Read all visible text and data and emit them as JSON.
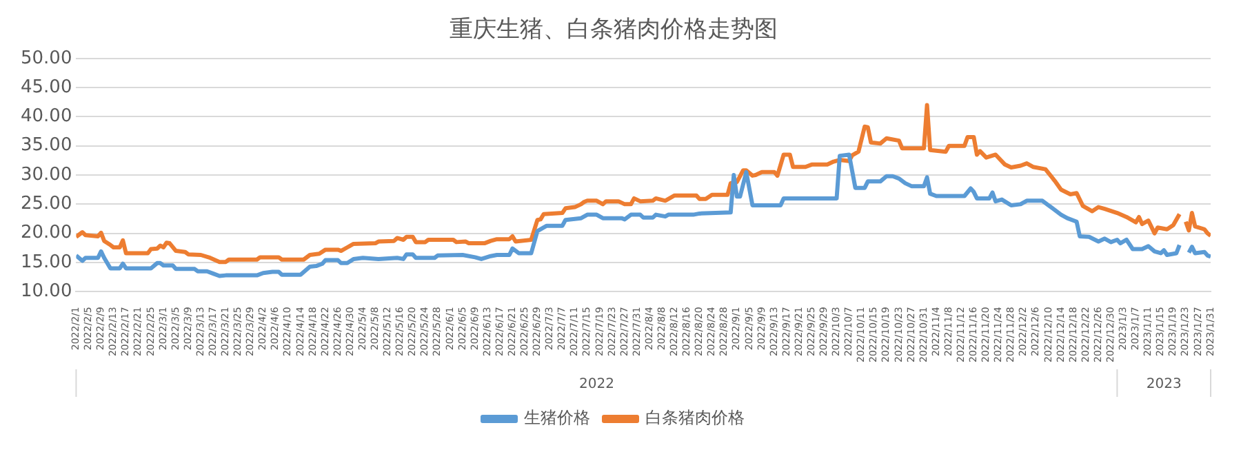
{
  "chart_data": {
    "type": "line",
    "title": "重庆生猪、白条猪肉价格走势图",
    "xlim": [
      "2022-02-01",
      "2023-01-31"
    ],
    "xticks": [
      {
        "value": "2022-02-01",
        "label": "2022/2/1"
      },
      {
        "value": "2022-02-05",
        "label": "2022/2/5"
      },
      {
        "value": "2022-02-09",
        "label": "2022/2/9"
      },
      {
        "value": "2022-02-13",
        "label": "2022/2/13"
      },
      {
        "value": "2022-02-17",
        "label": "2022/2/17"
      },
      {
        "value": "2022-02-21",
        "label": "2022/2/21"
      },
      {
        "value": "2022-02-25",
        "label": "2022/2/25"
      },
      {
        "value": "2022-03-01",
        "label": "2022/3/1"
      },
      {
        "value": "2022-03-05",
        "label": "2022/3/5"
      },
      {
        "value": "2022-03-09",
        "label": "2022/3/9"
      },
      {
        "value": "2022-03-13",
        "label": "2022/3/13"
      },
      {
        "value": "2022-03-17",
        "label": "2022/3/17"
      },
      {
        "value": "2022-03-21",
        "label": "2022/3/21"
      },
      {
        "value": "2022-03-25",
        "label": "2022/3/25"
      },
      {
        "value": "2022-03-29",
        "label": "2022/3/29"
      },
      {
        "value": "2022-04-02",
        "label": "2022/4/2"
      },
      {
        "value": "2022-04-06",
        "label": "2022/4/6"
      },
      {
        "value": "2022-04-10",
        "label": "2022/4/10"
      },
      {
        "value": "2022-04-14",
        "label": "2022/4/14"
      },
      {
        "value": "2022-04-18",
        "label": "2022/4/18"
      },
      {
        "value": "2022-04-22",
        "label": "2022/4/22"
      },
      {
        "value": "2022-04-26",
        "label": "2022/4/26"
      },
      {
        "value": "2022-04-30",
        "label": "2022/4/30"
      },
      {
        "value": "2022-05-04",
        "label": "2022/5/4"
      },
      {
        "value": "2022-05-08",
        "label": "2022/5/8"
      },
      {
        "value": "2022-05-12",
        "label": "2022/5/12"
      },
      {
        "value": "2022-05-16",
        "label": "2022/5/16"
      },
      {
        "value": "2022-05-20",
        "label": "2022/5/20"
      },
      {
        "value": "2022-05-24",
        "label": "2022/5/24"
      },
      {
        "value": "2022-05-28",
        "label": "2022/5/28"
      },
      {
        "value": "2022-06-01",
        "label": "2022/6/1"
      },
      {
        "value": "2022-06-05",
        "label": "2022/6/5"
      },
      {
        "value": "2022-06-09",
        "label": "2022/6/9"
      },
      {
        "value": "2022-06-13",
        "label": "2022/6/13"
      },
      {
        "value": "2022-06-17",
        "label": "2022/6/17"
      },
      {
        "value": "2022-06-21",
        "label": "2022/6/21"
      },
      {
        "value": "2022-06-25",
        "label": "2022/6/25"
      },
      {
        "value": "2022-06-29",
        "label": "2022/6/29"
      },
      {
        "value": "2022-07-03",
        "label": "2022/7/3"
      },
      {
        "value": "2022-07-07",
        "label": "2022/7/7"
      },
      {
        "value": "2022-07-11",
        "label": "2022/7/11"
      },
      {
        "value": "2022-07-15",
        "label": "2022/7/15"
      },
      {
        "value": "2022-07-19",
        "label": "2022/7/19"
      },
      {
        "value": "2022-07-23",
        "label": "2022/7/23"
      },
      {
        "value": "2022-07-27",
        "label": "2022/7/27"
      },
      {
        "value": "2022-07-31",
        "label": "2022/7/31"
      },
      {
        "value": "2022-08-04",
        "label": "2022/8/4"
      },
      {
        "value": "2022-08-08",
        "label": "2022/8/8"
      },
      {
        "value": "2022-08-12",
        "label": "2022/8/12"
      },
      {
        "value": "2022-08-16",
        "label": "2022/8/16"
      },
      {
        "value": "2022-08-20",
        "label": "2022/8/20"
      },
      {
        "value": "2022-08-24",
        "label": "2022/8/24"
      },
      {
        "value": "2022-08-28",
        "label": "2022/8/28"
      },
      {
        "value": "2022-09-01",
        "label": "2022/9/1"
      },
      {
        "value": "2022-09-05",
        "label": "2022/9/5"
      },
      {
        "value": "2022-09-09",
        "label": "2022/9/9"
      },
      {
        "value": "2022-09-13",
        "label": "2022/9/13"
      },
      {
        "value": "2022-09-17",
        "label": "2022/9/17"
      },
      {
        "value": "2022-09-21",
        "label": "2022/9/21"
      },
      {
        "value": "2022-09-25",
        "label": "2022/9/25"
      },
      {
        "value": "2022-09-29",
        "label": "2022/9/29"
      },
      {
        "value": "2022-10-03",
        "label": "2022/10/3"
      },
      {
        "value": "2022-10-07",
        "label": "2022/10/7"
      },
      {
        "value": "2022-10-11",
        "label": "2022/10/11"
      },
      {
        "value": "2022-10-15",
        "label": "2022/10/15"
      },
      {
        "value": "2022-10-19",
        "label": "2022/10/19"
      },
      {
        "value": "2022-10-23",
        "label": "2022/10/23"
      },
      {
        "value": "2022-10-27",
        "label": "2022/10/27"
      },
      {
        "value": "2022-10-31",
        "label": "2022/10/31"
      },
      {
        "value": "2022-11-04",
        "label": "2022/11/4"
      },
      {
        "value": "2022-11-08",
        "label": "2022/11/8"
      },
      {
        "value": "2022-11-12",
        "label": "2022/11/12"
      },
      {
        "value": "2022-11-16",
        "label": "2022/11/16"
      },
      {
        "value": "2022-11-20",
        "label": "2022/11/20"
      },
      {
        "value": "2022-11-24",
        "label": "2022/11/24"
      },
      {
        "value": "2022-11-28",
        "label": "2022/11/28"
      },
      {
        "value": "2022-12-02",
        "label": "2022/12/2"
      },
      {
        "value": "2022-12-06",
        "label": "2022/12/6"
      },
      {
        "value": "2022-12-10",
        "label": "2022/12/10"
      },
      {
        "value": "2022-12-14",
        "label": "2022/12/14"
      },
      {
        "value": "2022-12-18",
        "label": "2022/12/18"
      },
      {
        "value": "2022-12-22",
        "label": "2022/12/22"
      },
      {
        "value": "2022-12-26",
        "label": "2022/12/26"
      },
      {
        "value": "2022-12-30",
        "label": "2022/12/30"
      },
      {
        "value": "2023-01-03",
        "label": "2023/1/3"
      },
      {
        "value": "2023-01-07",
        "label": "2023/1/7"
      },
      {
        "value": "2023-01-11",
        "label": "2023/1/11"
      },
      {
        "value": "2023-01-15",
        "label": "2023/1/15"
      },
      {
        "value": "2023-01-19",
        "label": "2023/1/19"
      },
      {
        "value": "2023-01-23",
        "label": "2023/1/23"
      },
      {
        "value": "2023-01-27",
        "label": "2023/1/27"
      },
      {
        "value": "2023-01-31",
        "label": "2023/1/31"
      }
    ],
    "ylim": [
      10,
      50
    ],
    "yticks": [
      {
        "value": 10,
        "label": "10.00"
      },
      {
        "value": 15,
        "label": "15.00"
      },
      {
        "value": 20,
        "label": "20.00"
      },
      {
        "value": 25,
        "label": "25.00"
      },
      {
        "value": 30,
        "label": "30.00"
      },
      {
        "value": 35,
        "label": "35.00"
      },
      {
        "value": 40,
        "label": "40.00"
      },
      {
        "value": 45,
        "label": "45.00"
      },
      {
        "value": 50,
        "label": "50.00"
      }
    ],
    "grid": "y",
    "legend": "bottom",
    "marker": "none",
    "line_style": "solid",
    "annotations": [
      "2022",
      "2023"
    ],
    "series": [
      {
        "name": "生猪价格",
        "color": "#5b9bd5",
        "x": [
          "2022-02-01",
          "2022-02-03",
          "2022-02-04",
          "2022-02-08",
          "2022-02-09",
          "2022-02-10",
          "2022-02-12",
          "2022-02-15",
          "2022-02-16",
          "2022-02-17",
          "2022-02-25",
          "2022-02-27",
          "2022-02-28",
          "2022-03-01",
          "2022-03-04",
          "2022-03-05",
          "2022-03-11",
          "2022-03-12",
          "2022-03-15",
          "2022-03-17",
          "2022-03-19",
          "2022-03-21",
          "2022-03-31",
          "2022-04-02",
          "2022-04-05",
          "2022-04-07",
          "2022-04-08",
          "2022-04-14",
          "2022-04-17",
          "2022-04-19",
          "2022-04-21",
          "2022-04-22",
          "2022-04-26",
          "2022-04-27",
          "2022-04-29",
          "2022-05-01",
          "2022-05-04",
          "2022-05-09",
          "2022-05-15",
          "2022-05-17",
          "2022-05-18",
          "2022-05-20",
          "2022-05-21",
          "2022-05-27",
          "2022-05-28",
          "2022-06-05",
          "2022-06-09",
          "2022-06-11",
          "2022-06-14",
          "2022-06-16",
          "2022-06-20",
          "2022-06-21",
          "2022-06-23",
          "2022-06-27",
          "2022-06-29",
          "2022-07-01",
          "2022-07-02",
          "2022-07-07",
          "2022-07-08",
          "2022-07-13",
          "2022-07-15",
          "2022-07-18",
          "2022-07-20",
          "2022-07-26",
          "2022-07-27",
          "2022-07-29",
          "2022-08-01",
          "2022-08-02",
          "2022-08-05",
          "2022-08-06",
          "2022-08-09",
          "2022-08-10",
          "2022-08-18",
          "2022-08-20",
          "2022-08-30",
          "2022-08-31",
          "2022-09-01",
          "2022-09-02",
          "2022-09-04",
          "2022-09-06",
          "2022-09-15",
          "2022-09-16",
          "2022-10-03",
          "2022-10-04",
          "2022-10-07",
          "2022-10-09",
          "2022-10-12",
          "2022-10-13",
          "2022-10-17",
          "2022-10-19",
          "2022-10-21",
          "2022-10-23",
          "2022-10-25",
          "2022-10-27",
          "2022-10-31",
          "2022-11-01",
          "2022-11-02",
          "2022-11-04",
          "2022-11-13",
          "2022-11-15",
          "2022-11-16",
          "2022-11-17",
          "2022-11-21",
          "2022-11-22",
          "2022-11-23",
          "2022-11-25",
          "2022-11-28",
          "2022-12-01",
          "2022-12-03",
          "2022-12-08",
          "2022-12-10",
          "2022-12-14",
          "2022-12-16",
          "2022-12-19",
          "2022-12-20",
          "2022-12-23",
          "2022-12-26",
          "2022-12-28",
          "2022-12-30",
          "2023-01-01",
          "2023-01-02",
          "2023-01-04",
          "2023-01-06",
          "2023-01-09",
          "2023-01-11",
          "2023-01-13",
          "2023-01-15",
          "2023-01-16",
          "2023-01-17",
          "2023-01-20",
          "2023-01-21",
          "2023-01-22",
          "2023-01-24",
          "2023-01-25",
          "2023-01-26",
          "2023-01-29",
          "2023-01-30",
          "2023-01-31"
        ],
        "values": [
          16.2,
          15.3,
          15.8,
          15.8,
          16.9,
          15.8,
          14.0,
          14.0,
          14.8,
          14.0,
          14.0,
          14.9,
          14.9,
          14.5,
          14.5,
          13.9,
          13.9,
          13.5,
          13.5,
          13.1,
          12.7,
          12.8,
          12.8,
          13.2,
          13.4,
          13.4,
          12.9,
          12.9,
          14.3,
          14.4,
          14.8,
          15.4,
          15.4,
          14.9,
          14.9,
          15.6,
          15.8,
          15.6,
          15.8,
          15.6,
          16.4,
          16.4,
          15.8,
          15.8,
          16.2,
          16.3,
          15.9,
          15.6,
          16.1,
          16.3,
          16.3,
          17.4,
          16.6,
          16.6,
          20.4,
          21.0,
          21.3,
          21.3,
          22.3,
          22.6,
          23.2,
          23.2,
          22.6,
          22.6,
          22.4,
          23.2,
          23.2,
          22.7,
          22.7,
          23.2,
          22.9,
          23.2,
          23.2,
          23.4,
          23.6,
          30.0,
          26.3,
          26.3,
          30.5,
          24.8,
          24.8,
          26.0,
          26.0,
          33.3,
          33.5,
          27.8,
          27.8,
          28.9,
          28.9,
          29.8,
          29.8,
          29.4,
          28.6,
          28.1,
          28.1,
          29.6,
          26.8,
          26.4,
          26.4,
          27.7,
          27.1,
          26.0,
          26.0,
          27.0,
          25.5,
          25.8,
          24.8,
          25.0,
          25.6,
          25.6,
          24.8,
          23.2,
          22.6,
          22.0,
          19.5,
          19.4,
          18.6,
          19.1,
          18.5,
          18.9,
          18.3,
          18.9,
          17.3,
          17.3,
          17.8,
          16.9,
          16.6,
          17.1,
          16.3,
          16.6,
          18.0,
          null,
          16.7,
          17.7,
          16.6,
          16.8,
          16.2,
          16.0
        ]
      },
      {
        "name": "白条猪肉价格",
        "color": "#ed7d31",
        "x": [
          "2022-02-01",
          "2022-02-03",
          "2022-02-04",
          "2022-02-08",
          "2022-02-09",
          "2022-02-10",
          "2022-02-12",
          "2022-02-13",
          "2022-02-15",
          "2022-02-16",
          "2022-02-17",
          "2022-02-24",
          "2022-02-25",
          "2022-02-27",
          "2022-02-28",
          "2022-03-01",
          "2022-03-02",
          "2022-03-03",
          "2022-03-05",
          "2022-03-08",
          "2022-03-09",
          "2022-03-13",
          "2022-03-16",
          "2022-03-19",
          "2022-03-21",
          "2022-03-22",
          "2022-03-31",
          "2022-04-01",
          "2022-04-07",
          "2022-04-08",
          "2022-04-15",
          "2022-04-17",
          "2022-04-20",
          "2022-04-22",
          "2022-04-26",
          "2022-04-27",
          "2022-04-29",
          "2022-05-01",
          "2022-05-08",
          "2022-05-09",
          "2022-05-14",
          "2022-05-15",
          "2022-05-17",
          "2022-05-18",
          "2022-05-20",
          "2022-05-21",
          "2022-05-24",
          "2022-05-25",
          "2022-06-02",
          "2022-06-03",
          "2022-06-06",
          "2022-06-07",
          "2022-06-12",
          "2022-06-14",
          "2022-06-16",
          "2022-06-20",
          "2022-06-21",
          "2022-06-22",
          "2022-06-27",
          "2022-06-29",
          "2022-06-30",
          "2022-07-01",
          "2022-07-07",
          "2022-07-08",
          "2022-07-11",
          "2022-07-13",
          "2022-07-14",
          "2022-07-15",
          "2022-07-18",
          "2022-07-20",
          "2022-07-21",
          "2022-07-25",
          "2022-07-27",
          "2022-07-29",
          "2022-07-30",
          "2022-08-01",
          "2022-08-05",
          "2022-08-06",
          "2022-08-09",
          "2022-08-12",
          "2022-08-19",
          "2022-08-20",
          "2022-08-22",
          "2022-08-24",
          "2022-08-29",
          "2022-08-30",
          "2022-09-01",
          "2022-09-03",
          "2022-09-04",
          "2022-09-06",
          "2022-09-07",
          "2022-09-09",
          "2022-09-13",
          "2022-09-14",
          "2022-09-16",
          "2022-09-18",
          "2022-09-19",
          "2022-09-23",
          "2022-09-25",
          "2022-09-30",
          "2022-10-02",
          "2022-10-04",
          "2022-10-07",
          "2022-10-08",
          "2022-10-10",
          "2022-10-12",
          "2022-10-13",
          "2022-10-14",
          "2022-10-17",
          "2022-10-19",
          "2022-10-23",
          "2022-10-24",
          "2022-10-31",
          "2022-11-01",
          "2022-11-02",
          "2022-11-07",
          "2022-11-08",
          "2022-11-13",
          "2022-11-14",
          "2022-11-16",
          "2022-11-17",
          "2022-11-18",
          "2022-11-20",
          "2022-11-23",
          "2022-11-26",
          "2022-11-28",
          "2022-12-01",
          "2022-12-03",
          "2022-12-05",
          "2022-12-09",
          "2022-12-12",
          "2022-12-14",
          "2022-12-17",
          "2022-12-19",
          "2022-12-21",
          "2022-12-24",
          "2022-12-26",
          "2022-12-28",
          "2023-01-01",
          "2023-01-04",
          "2023-01-07",
          "2023-01-08",
          "2023-01-09",
          "2023-01-11",
          "2023-01-13",
          "2023-01-14",
          "2023-01-17",
          "2023-01-19",
          "2023-01-21",
          "2023-01-22",
          "2023-01-23",
          "2023-01-24",
          "2023-01-25",
          "2023-01-26",
          "2023-01-29",
          "2023-01-30",
          "2023-01-31"
        ],
        "values": [
          19.4,
          20.2,
          19.7,
          19.5,
          20.1,
          18.7,
          18.0,
          17.6,
          17.6,
          18.8,
          16.6,
          16.6,
          17.3,
          17.4,
          17.9,
          17.6,
          18.4,
          18.3,
          17.0,
          16.8,
          16.4,
          16.3,
          15.8,
          15.1,
          15.1,
          15.5,
          15.5,
          15.9,
          15.9,
          15.5,
          15.5,
          16.3,
          16.5,
          17.2,
          17.2,
          17.0,
          17.6,
          18.2,
          18.3,
          18.6,
          18.7,
          19.2,
          18.9,
          19.4,
          19.4,
          18.5,
          18.5,
          18.9,
          18.9,
          18.5,
          18.6,
          18.3,
          18.3,
          18.7,
          19.0,
          19.0,
          19.5,
          18.6,
          18.9,
          22.3,
          22.4,
          23.3,
          23.5,
          24.3,
          24.5,
          25.0,
          25.4,
          25.6,
          25.6,
          25.0,
          25.5,
          25.5,
          25.0,
          25.0,
          26.0,
          25.5,
          25.6,
          26.0,
          25.6,
          26.5,
          26.5,
          25.9,
          25.9,
          26.6,
          26.6,
          28.6,
          28.8,
          30.8,
          30.8,
          29.9,
          30.0,
          30.5,
          30.5,
          29.9,
          33.5,
          33.5,
          31.4,
          31.4,
          31.8,
          31.8,
          32.3,
          32.6,
          32.4,
          33.4,
          34.0,
          38.3,
          38.2,
          35.6,
          35.4,
          36.3,
          35.9,
          34.6,
          34.6,
          42.0,
          34.3,
          34.0,
          35.0,
          35.0,
          36.5,
          36.5,
          33.5,
          34.1,
          33.0,
          33.5,
          31.8,
          31.3,
          31.6,
          32.0,
          31.4,
          31.0,
          29.0,
          27.5,
          26.7,
          26.9,
          24.7,
          23.8,
          24.5,
          24.2,
          23.5,
          22.8,
          21.9,
          22.8,
          21.6,
          22.2,
          20.0,
          21.0,
          20.7,
          21.4,
          23.3,
          null,
          22.0,
          20.5,
          23.5,
          21.2,
          20.7,
          20.0,
          19.6
        ]
      }
    ]
  }
}
